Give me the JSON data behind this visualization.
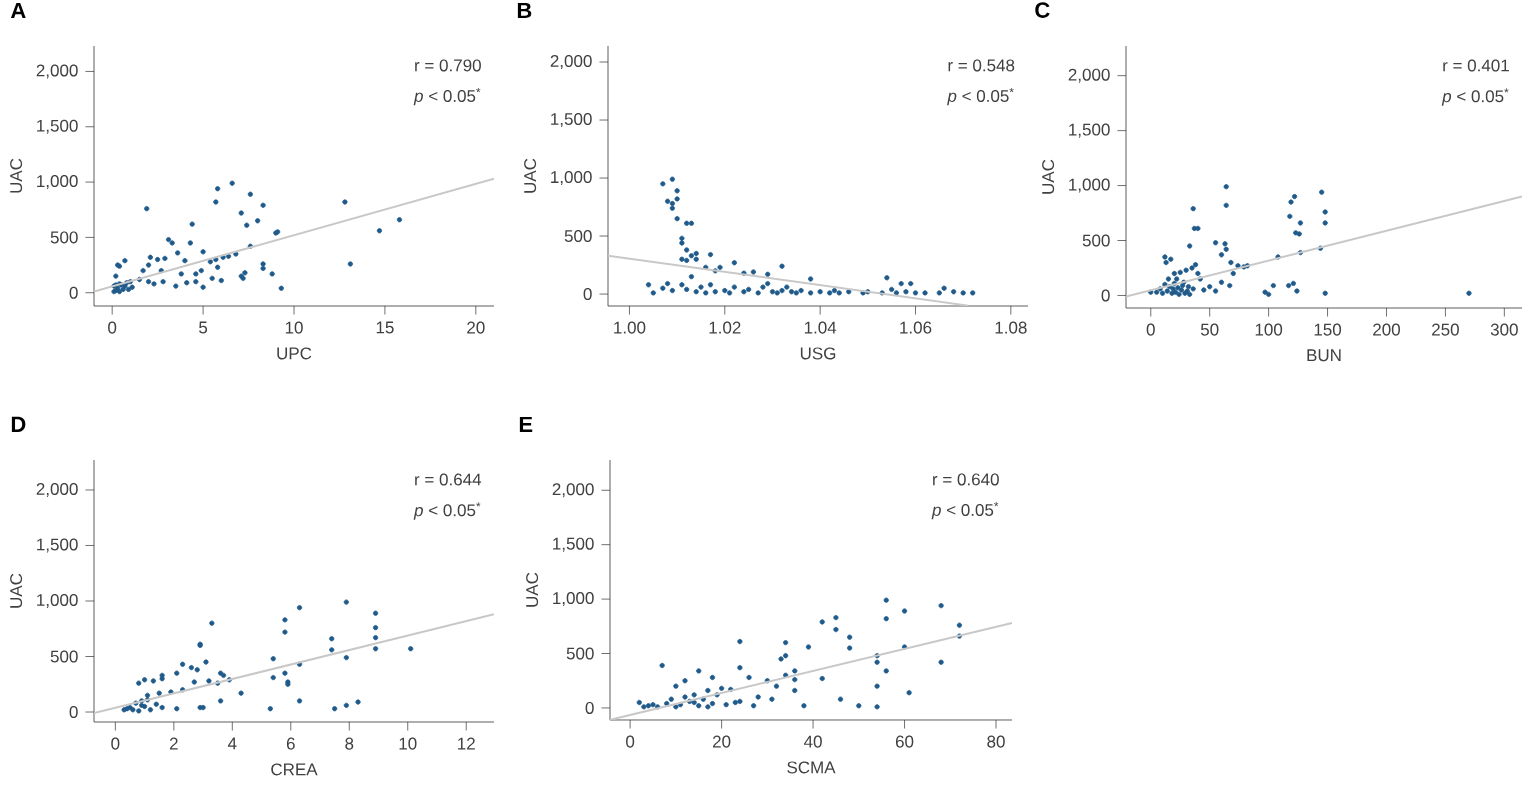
{
  "chart_data": [
    {
      "type": "scatter",
      "title": "A",
      "xlabel": "UPC",
      "ylabel": "UAC",
      "annotations": [
        "r = 0.790",
        "*p* < 0.05$^{*}$"
      ],
      "xlim": [
        -1,
        21
      ],
      "ylim": [
        -120,
        2230
      ],
      "xticks": [
        0,
        5,
        10,
        15,
        20
      ],
      "yticks": [
        0,
        500,
        {
          "value": 1000,
          "label": "1,000"
        },
        {
          "value": 1500,
          "label": "1,500"
        },
        {
          "value": 2000,
          "label": "2,000"
        }
      ],
      "series": [
        {
          "type": "scatter",
          "marker": "circle",
          "color": "#1f5a8a",
          "x": [
            1.9,
            5.8,
            5.7,
            6.6,
            7.6,
            8.3,
            7.1,
            7.4,
            8.0,
            9.1,
            9.0,
            12.8,
            15.8,
            14.7,
            13.1,
            9.3,
            8.8,
            8.3,
            8.3,
            7.6,
            7.3,
            7.1,
            6.8,
            6.1,
            6.0,
            5.8,
            5.4,
            5.0,
            5.0,
            4.6,
            4.4,
            4.3,
            4.0,
            3.6,
            3.3,
            3.1,
            2.9,
            2.7,
            2.5,
            2.1,
            2.0,
            1.7,
            1.0,
            1.1,
            0.7,
            0.4,
            0.3,
            0.2,
            0.1,
            0.2,
            0.3,
            0.4,
            0.5,
            0.6,
            0.7,
            0.8,
            0.9,
            0.1,
            0.2,
            0.4,
            4.1,
            4.6,
            2.3,
            1.5,
            5.5,
            5.7,
            6.4,
            7.2,
            4.9,
            3.8,
            3.5,
            2.8,
            2.0
          ],
          "values": [
            760,
            940,
            820,
            990,
            890,
            790,
            720,
            610,
            650,
            550,
            540,
            820,
            660,
            560,
            260,
            40,
            170,
            260,
            220,
            420,
            180,
            150,
            350,
            320,
            110,
            230,
            280,
            370,
            50,
            170,
            620,
            450,
            290,
            360,
            450,
            480,
            310,
            200,
            300,
            320,
            250,
            200,
            100,
            50,
            290,
            240,
            250,
            150,
            60,
            20,
            40,
            80,
            70,
            30,
            60,
            90,
            30,
            10,
            70,
            10,
            90,
            100,
            80,
            120,
            130,
            300,
            330,
            130,
            200,
            170,
            60,
            100,
            100
          ]
        },
        {
          "type": "line",
          "marker": "none",
          "color": "#c8c8c8",
          "x": [
            -1,
            21
          ],
          "values": [
            10,
            1030
          ]
        }
      ]
    },
    {
      "type": "scatter",
      "title": "B",
      "xlabel": "USG",
      "ylabel": "UAC",
      "annotations": [
        "r = 0.548",
        "*p* < 0.05$^{*}$"
      ],
      "xlim": [
        0.9955,
        1.0836
      ],
      "ylim": [
        -103,
        2138
      ],
      "xticks": [
        {
          "value": 1.0,
          "label": "1.00"
        },
        1.02,
        1.04,
        1.06,
        1.08
      ],
      "yticks": [
        0,
        500,
        {
          "value": 1000,
          "label": "1,000"
        },
        {
          "value": 1500,
          "label": "1,500"
        },
        {
          "value": 2000,
          "label": "2,000"
        }
      ],
      "series": [
        {
          "type": "scatter",
          "marker": "circle",
          "color": "#1f5a8a",
          "x": [
            1.007,
            1.009,
            1.008,
            1.009,
            1.009,
            1.01,
            1.01,
            1.01,
            1.012,
            1.013,
            1.011,
            1.011,
            1.011,
            1.012,
            1.012,
            1.013,
            1.014,
            1.014,
            1.016,
            1.017,
            1.018,
            1.019,
            1.022,
            1.024,
            1.026,
            1.029,
            1.032,
            1.038,
            1.054,
            1.057,
            1.059,
            1.066,
            1.004,
            1.005,
            1.007,
            1.008,
            1.009,
            1.011,
            1.012,
            1.013,
            1.014,
            1.015,
            1.016,
            1.017,
            1.018,
            1.02,
            1.021,
            1.022,
            1.024,
            1.025,
            1.027,
            1.028,
            1.029,
            1.03,
            1.031,
            1.032,
            1.033,
            1.034,
            1.035,
            1.036,
            1.038,
            1.04,
            1.042,
            1.043,
            1.044,
            1.046,
            1.049,
            1.05,
            1.053,
            1.055,
            1.056,
            1.058,
            1.06,
            1.062,
            1.065,
            1.068,
            1.07,
            1.072
          ],
          "values": [
            950,
            990,
            800,
            740,
            780,
            820,
            890,
            650,
            610,
            610,
            480,
            440,
            300,
            290,
            380,
            330,
            350,
            300,
            230,
            340,
            200,
            230,
            270,
            180,
            190,
            170,
            240,
            130,
            140,
            90,
            90,
            50,
            80,
            10,
            50,
            90,
            30,
            80,
            40,
            150,
            20,
            60,
            10,
            80,
            20,
            30,
            10,
            60,
            20,
            40,
            10,
            60,
            90,
            20,
            10,
            30,
            60,
            20,
            10,
            30,
            10,
            20,
            10,
            30,
            10,
            20,
            10,
            20,
            10,
            40,
            10,
            20,
            10,
            10,
            10,
            20,
            10,
            10
          ]
        },
        {
          "type": "line",
          "marker": "none",
          "color": "#c8c8c8",
          "x": [
            0.9955,
            1.0711
          ],
          "values": [
            330,
            -100
          ]
        }
      ]
    },
    {
      "type": "scatter",
      "title": "C",
      "xlabel": "BUN",
      "ylabel": "UAC",
      "annotations": [
        "r = 0.401",
        "*p* < 0.05$^{*}$"
      ],
      "xlim": [
        -21,
        315
      ],
      "ylim": [
        -114,
        2270
      ],
      "xticks": [
        0,
        50,
        100,
        150,
        200,
        250,
        300
      ],
      "yticks": [
        0,
        500,
        {
          "value": 1000,
          "label": "1,000"
        },
        {
          "value": 1500,
          "label": "1,500"
        },
        {
          "value": 2000,
          "label": "2,000"
        }
      ],
      "series": [
        {
          "type": "scatter",
          "marker": "circle",
          "color": "#1f5a8a",
          "x": [
            64,
            64,
            36,
            37,
            40,
            33,
            55,
            63,
            64,
            60,
            68,
            74,
            79,
            82,
            122,
            119,
            118,
            123,
            126,
            127,
            127,
            145,
            148,
            148,
            144,
            148,
            108,
            104,
            117,
            121,
            124,
            97,
            100,
            270,
            12,
            13,
            17,
            20,
            22,
            25,
            28,
            30,
            32,
            35,
            38,
            40,
            42,
            45,
            50,
            55,
            60,
            67,
            70,
            5,
            8,
            10,
            12,
            14,
            15,
            16,
            18,
            19,
            20,
            21,
            23,
            24,
            26,
            27,
            29,
            31,
            33,
            36,
            0
          ],
          "values": [
            990,
            820,
            790,
            610,
            610,
            450,
            480,
            470,
            420,
            370,
            300,
            270,
            260,
            270,
            900,
            850,
            720,
            570,
            560,
            660,
            390,
            940,
            760,
            660,
            430,
            20,
            350,
            90,
            90,
            110,
            40,
            30,
            10,
            20,
            350,
            300,
            330,
            200,
            150,
            210,
            120,
            230,
            80,
            250,
            280,
            200,
            150,
            50,
            80,
            40,
            120,
            90,
            200,
            30,
            60,
            20,
            100,
            40,
            150,
            80,
            20,
            60,
            110,
            30,
            70,
            10,
            50,
            90,
            20,
            40,
            10,
            60,
            30
          ]
        },
        {
          "type": "line",
          "marker": "none",
          "color": "#c8c8c8",
          "x": [
            -21,
            315
          ],
          "values": [
            -10,
            900
          ]
        }
      ]
    },
    {
      "type": "scatter",
      "title": "D",
      "xlabel": "CREA",
      "ylabel": "UAC",
      "annotations": [
        "r = 0.644",
        "*p* < 0.05$^{*}$"
      ],
      "xlim": [
        -0.73,
        12.95
      ],
      "ylim": [
        -90,
        2270
      ],
      "xticks": [
        0,
        2,
        4,
        6,
        8,
        10,
        12
      ],
      "yticks": [
        0,
        500,
        {
          "value": 1000,
          "label": "1,000"
        },
        {
          "value": 1500,
          "label": "1,500"
        },
        {
          "value": 2000,
          "label": "2,000"
        }
      ],
      "series": [
        {
          "type": "scatter",
          "marker": "circle",
          "color": "#1f5a8a",
          "x": [
            7.9,
            6.3,
            8.9,
            5.8,
            5.8,
            3.3,
            7.4,
            8.9,
            8.9,
            7.4,
            8.9,
            10.1,
            7.9,
            5.4,
            6.3,
            5.4,
            5.8,
            5.9,
            5.9,
            2.9,
            2.9,
            3.1,
            2.3,
            2.6,
            2.8,
            3.6,
            3.9,
            3.7,
            3.5,
            4.3,
            3.2,
            2.7,
            2.3,
            2.1,
            1.6,
            1.6,
            1.3,
            1.0,
            0.8,
            1.9,
            1.5,
            1.1,
            0.9,
            0.7,
            0.5,
            0.6,
            0.4,
            0.8,
            1.0,
            1.2,
            1.4,
            1.6,
            2.1,
            2.9,
            3.0,
            3.6,
            5.3,
            6.3,
            7.5,
            7.9,
            8.3,
            0.3,
            0.9,
            1.1
          ],
          "values": [
            990,
            940,
            890,
            830,
            720,
            800,
            660,
            670,
            760,
            560,
            570,
            570,
            490,
            480,
            430,
            310,
            350,
            270,
            250,
            610,
            600,
            450,
            430,
            400,
            380,
            350,
            290,
            330,
            260,
            170,
            280,
            270,
            200,
            350,
            330,
            300,
            280,
            290,
            260,
            180,
            170,
            150,
            100,
            80,
            40,
            20,
            30,
            10,
            50,
            20,
            70,
            40,
            30,
            40,
            40,
            100,
            30,
            100,
            30,
            60,
            90,
            20,
            60,
            110
          ]
        },
        {
          "type": "line",
          "marker": "none",
          "color": "#c8c8c8",
          "x": [
            -0.73,
            12.95
          ],
          "values": [
            -10,
            880
          ]
        }
      ]
    },
    {
      "type": "scatter",
      "title": "E",
      "xlabel": "SCMA",
      "ylabel": "UAC",
      "annotations": [
        "r = 0.640",
        "*p* < 0.05$^{*}$"
      ],
      "xlim": [
        -4.4,
        83.5
      ],
      "ylim": [
        -111,
        2278
      ],
      "xticks": [
        0,
        20,
        40,
        60,
        80
      ],
      "yticks": [
        0,
        500,
        {
          "value": 1000,
          "label": "1,000"
        },
        {
          "value": 1500,
          "label": "1,500"
        },
        {
          "value": 2000,
          "label": "2,000"
        }
      ],
      "series": [
        {
          "type": "scatter",
          "marker": "circle",
          "color": "#1f5a8a",
          "x": [
            56,
            68,
            60,
            45,
            56,
            42,
            45,
            72,
            72,
            48,
            34,
            24,
            48,
            60,
            39,
            54,
            54,
            68,
            56,
            54,
            61,
            7,
            15,
            24,
            34,
            33,
            36,
            34,
            36,
            42,
            30,
            32,
            20,
            18,
            17,
            12,
            10,
            22,
            26,
            28,
            31,
            38,
            46,
            50,
            54,
            36,
            24,
            27,
            14,
            2,
            4,
            6,
            8,
            9,
            11,
            12,
            13,
            15,
            16,
            18,
            19,
            21,
            23,
            3,
            5,
            10,
            14,
            17
          ],
          "values": [
            990,
            940,
            890,
            830,
            820,
            790,
            720,
            760,
            660,
            650,
            600,
            610,
            550,
            560,
            560,
            480,
            420,
            420,
            340,
            200,
            140,
            390,
            340,
            370,
            480,
            450,
            340,
            300,
            260,
            270,
            250,
            200,
            180,
            280,
            160,
            250,
            200,
            170,
            280,
            100,
            80,
            20,
            80,
            20,
            10,
            160,
            60,
            20,
            50,
            50,
            20,
            10,
            40,
            80,
            30,
            100,
            60,
            20,
            80,
            40,
            120,
            30,
            50,
            10,
            30,
            10,
            120,
            10
          ]
        },
        {
          "type": "line",
          "marker": "none",
          "color": "#c8c8c8",
          "x": [
            -4.4,
            83.5
          ],
          "values": [
            -110,
            780
          ]
        }
      ]
    }
  ]
}
